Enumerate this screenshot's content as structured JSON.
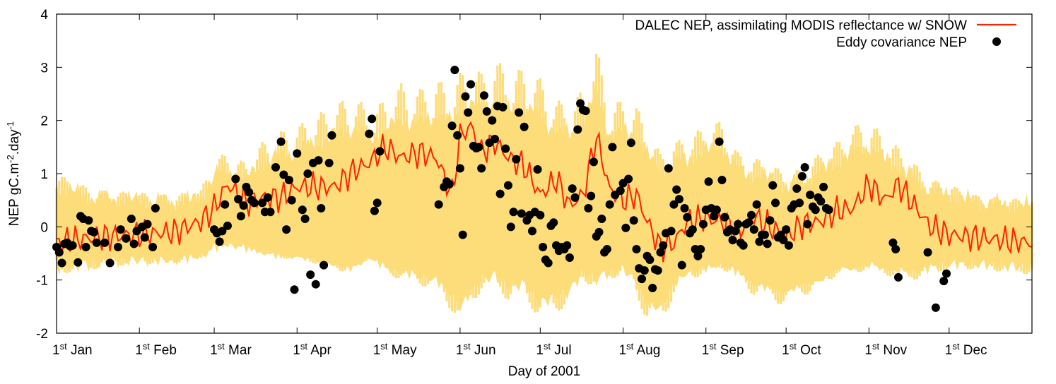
{
  "chart_data": {
    "type": "line",
    "title": "",
    "xlabel": "Day of 2001",
    "ylabel": "NEP gC.m",
    "ylabel_sup1": "-2",
    "ylabel_mid": ".day",
    "ylabel_sup2": "-1",
    "xlim": [
      1,
      366
    ],
    "ylim": [
      -2,
      4
    ],
    "yticks": [
      -2,
      -1,
      0,
      1,
      2,
      3,
      4
    ],
    "xticks": [
      {
        "day": 1,
        "sup": "st",
        "label": "Jan"
      },
      {
        "day": 32,
        "sup": "st",
        "label": "Feb"
      },
      {
        "day": 60,
        "sup": "st",
        "label": "Mar"
      },
      {
        "day": 91,
        "sup": "st",
        "label": "Apr"
      },
      {
        "day": 121,
        "sup": "st",
        "label": "May"
      },
      {
        "day": 152,
        "sup": "st",
        "label": "Jun"
      },
      {
        "day": 182,
        "sup": "st",
        "label": "Jul"
      },
      {
        "day": 213,
        "sup": "st",
        "label": "Aug"
      },
      {
        "day": 244,
        "sup": "st",
        "label": "Sep"
      },
      {
        "day": 274,
        "sup": "st",
        "label": "Oct"
      },
      {
        "day": 305,
        "sup": "st",
        "label": "Nov"
      },
      {
        "day": 335,
        "sup": "st",
        "label": "Dec"
      }
    ],
    "grid": false,
    "legend_position": "top-right",
    "colors": {
      "band": "#fddc7a",
      "line": "#ff2200",
      "points": "#000000"
    },
    "series": [
      {
        "name": "DALEC NEP, assimilating MODIS reflectance w/ SNOW",
        "kind": "line",
        "x": [
          1,
          15,
          30,
          45,
          55,
          60,
          65,
          72,
          78,
          85,
          91,
          98,
          105,
          112,
          118,
          124,
          130,
          137,
          143,
          149,
          152,
          156,
          160,
          165,
          170,
          176,
          182,
          188,
          193,
          198,
          203,
          208,
          213,
          218,
          222,
          227,
          232,
          237,
          244,
          250,
          256,
          262,
          268,
          274,
          280,
          287,
          293,
          299,
          305,
          311,
          316,
          322,
          328,
          335,
          345,
          355,
          366
        ],
        "y": [
          -0.3,
          -0.2,
          -0.15,
          -0.1,
          0.1,
          0.35,
          0.8,
          0.45,
          0.55,
          0.55,
          0.75,
          0.75,
          0.75,
          1.05,
          1.2,
          1.5,
          1.3,
          1.4,
          1.3,
          0.6,
          1.7,
          1.9,
          1.4,
          1.6,
          1.3,
          1.15,
          0.6,
          0.9,
          0.4,
          0.6,
          1.7,
          0.7,
          0.5,
          0.6,
          0.1,
          -0.4,
          -0.3,
          0.1,
          0.15,
          0.1,
          -0.1,
          0.2,
          0.0,
          -0.2,
          0.05,
          0.1,
          0.3,
          0.35,
          0.8,
          0.5,
          0.8,
          0.4,
          0.0,
          -0.15,
          -0.2,
          -0.25,
          -0.3
        ]
      },
      {
        "name": "Eddy covariance NEP",
        "kind": "scatter",
        "points": [
          [
            1,
            -0.38
          ],
          [
            2,
            -0.48
          ],
          [
            3,
            -0.68
          ],
          [
            4,
            -0.32
          ],
          [
            5,
            -0.3
          ],
          [
            6,
            -0.36
          ],
          [
            7,
            -0.35
          ],
          [
            9,
            -0.67
          ],
          [
            10,
            0.2
          ],
          [
            11,
            0.15
          ],
          [
            12,
            -0.38
          ],
          [
            13,
            0.12
          ],
          [
            14,
            -0.08
          ],
          [
            15,
            -0.1
          ],
          [
            16,
            -0.3
          ],
          [
            19,
            -0.3
          ],
          [
            21,
            -0.68
          ],
          [
            24,
            -0.38
          ],
          [
            25,
            -0.05
          ],
          [
            27,
            -0.22
          ],
          [
            29,
            0.15
          ],
          [
            30,
            -0.32
          ],
          [
            31,
            -0.08
          ],
          [
            33,
            0.0
          ],
          [
            34,
            -0.2
          ],
          [
            35,
            0.05
          ],
          [
            37,
            -0.38
          ],
          [
            38,
            0.35
          ],
          [
            60,
            -0.05
          ],
          [
            61,
            -0.12
          ],
          [
            62,
            -0.28
          ],
          [
            63,
            -0.08
          ],
          [
            64,
            0.42
          ],
          [
            65,
            0.02
          ],
          [
            68,
            0.9
          ],
          [
            69,
            0.52
          ],
          [
            70,
            0.2
          ],
          [
            71,
            0.4
          ],
          [
            72,
            0.75
          ],
          [
            73,
            0.65
          ],
          [
            74,
            0.5
          ],
          [
            75,
            0.45
          ],
          [
            78,
            0.45
          ],
          [
            79,
            0.28
          ],
          [
            80,
            0.55
          ],
          [
            81,
            0.28
          ],
          [
            83,
            1.12
          ],
          [
            85,
            1.6
          ],
          [
            86,
            0.98
          ],
          [
            87,
            -0.05
          ],
          [
            88,
            0.88
          ],
          [
            89,
            0.5
          ],
          [
            90,
            -1.18
          ],
          [
            91,
            1.38
          ],
          [
            93,
            0.32
          ],
          [
            94,
            0.15
          ],
          [
            95,
            1.0
          ],
          [
            96,
            -0.9
          ],
          [
            97,
            1.2
          ],
          [
            98,
            -1.08
          ],
          [
            99,
            1.25
          ],
          [
            100,
            0.35
          ],
          [
            101,
            -0.72
          ],
          [
            103,
            1.2
          ],
          [
            104,
            1.72
          ],
          [
            118,
            1.75
          ],
          [
            119,
            2.03
          ],
          [
            120,
            0.3
          ],
          [
            121,
            0.45
          ],
          [
            122,
            1.42
          ],
          [
            144,
            0.42
          ],
          [
            146,
            0.75
          ],
          [
            147,
            0.85
          ],
          [
            148,
            0.8
          ],
          [
            149,
            1.9
          ],
          [
            150,
            2.95
          ],
          [
            151,
            1.72
          ],
          [
            152,
            1.1
          ],
          [
            153,
            -0.15
          ],
          [
            154,
            2.45
          ],
          [
            155,
            2.15
          ],
          [
            156,
            2.68
          ],
          [
            157,
            1.52
          ],
          [
            158,
            1.48
          ],
          [
            159,
            1.5
          ],
          [
            160,
            1.1
          ],
          [
            161,
            2.47
          ],
          [
            162,
            2.17
          ],
          [
            163,
            1.58
          ],
          [
            164,
            2.0
          ],
          [
            165,
            1.65
          ],
          [
            166,
            2.27
          ],
          [
            167,
            0.62
          ],
          [
            168,
            2.25
          ],
          [
            169,
            1.47
          ],
          [
            170,
            0.78
          ],
          [
            171,
            0.0
          ],
          [
            172,
            0.28
          ],
          [
            173,
            1.27
          ],
          [
            174,
            2.15
          ],
          [
            175,
            0.25
          ],
          [
            176,
            1.88
          ],
          [
            177,
            0.12
          ],
          [
            178,
            0.22
          ],
          [
            179,
            -0.08
          ],
          [
            180,
            0.28
          ],
          [
            181,
            1.08
          ],
          [
            182,
            0.22
          ],
          [
            183,
            -0.38
          ],
          [
            184,
            -0.62
          ],
          [
            185,
            -0.68
          ],
          [
            186,
            0.02
          ],
          [
            187,
            0.08
          ],
          [
            188,
            -0.35
          ],
          [
            189,
            -0.45
          ],
          [
            190,
            -0.38
          ],
          [
            191,
            -0.42
          ],
          [
            192,
            -0.35
          ],
          [
            193,
            -0.58
          ],
          [
            194,
            0.72
          ],
          [
            195,
            0.55
          ],
          [
            196,
            1.83
          ],
          [
            197,
            2.32
          ],
          [
            198,
            2.2
          ],
          [
            199,
            2.18
          ],
          [
            200,
            0.35
          ],
          [
            201,
            0.58
          ],
          [
            202,
            1.22
          ],
          [
            203,
            -0.18
          ],
          [
            204,
            -0.1
          ],
          [
            205,
            0.15
          ],
          [
            206,
            -0.48
          ],
          [
            207,
            -0.42
          ],
          [
            208,
            0.42
          ],
          [
            209,
            1.5
          ],
          [
            210,
            0.6
          ],
          [
            212,
            0.68
          ],
          [
            213,
            0.82
          ],
          [
            214,
            -0.02
          ],
          [
            215,
            0.9
          ],
          [
            216,
            1.58
          ],
          [
            217,
            0.12
          ],
          [
            218,
            -0.42
          ],
          [
            219,
            -0.78
          ],
          [
            220,
            -0.98
          ],
          [
            221,
            -0.82
          ],
          [
            222,
            -0.55
          ],
          [
            223,
            -0.62
          ],
          [
            224,
            -1.15
          ],
          [
            225,
            -0.8
          ],
          [
            226,
            -0.82
          ],
          [
            227,
            -0.48
          ],
          [
            228,
            -0.35
          ],
          [
            229,
            -0.12
          ],
          [
            230,
            1.1
          ],
          [
            231,
            -0.08
          ],
          [
            232,
            0.42
          ],
          [
            233,
            0.7
          ],
          [
            234,
            0.52
          ],
          [
            235,
            -0.72
          ],
          [
            236,
            0.35
          ],
          [
            237,
            0.18
          ],
          [
            238,
            -0.12
          ],
          [
            239,
            -0.05
          ],
          [
            240,
            -0.42
          ],
          [
            241,
            -0.55
          ],
          [
            242,
            -0.42
          ],
          [
            243,
            0.05
          ],
          [
            244,
            0.32
          ],
          [
            245,
            0.85
          ],
          [
            246,
            0.35
          ],
          [
            247,
            0.2
          ],
          [
            248,
            0.32
          ],
          [
            249,
            1.6
          ],
          [
            250,
            0.88
          ],
          [
            251,
            0.18
          ],
          [
            252,
            -0.1
          ],
          [
            253,
            -0.05
          ],
          [
            254,
            -0.25
          ],
          [
            255,
            -0.08
          ],
          [
            256,
            0.05
          ],
          [
            257,
            -0.3
          ],
          [
            258,
            -0.35
          ],
          [
            259,
            0.05
          ],
          [
            260,
            0.08
          ],
          [
            261,
            0.22
          ],
          [
            262,
            -0.05
          ],
          [
            263,
            0.42
          ],
          [
            264,
            -0.28
          ],
          [
            265,
            -0.15
          ],
          [
            266,
            -0.15
          ],
          [
            267,
            -0.32
          ],
          [
            268,
            0.12
          ],
          [
            269,
            0.78
          ],
          [
            270,
            0.45
          ],
          [
            271,
            -0.2
          ],
          [
            272,
            -0.15
          ],
          [
            273,
            -0.25
          ],
          [
            274,
            -0.05
          ],
          [
            275,
            -0.35
          ],
          [
            276,
            0.35
          ],
          [
            277,
            0.42
          ],
          [
            278,
            0.72
          ],
          [
            279,
            0.45
          ],
          [
            280,
            0.95
          ],
          [
            281,
            1.12
          ],
          [
            282,
            0.05
          ],
          [
            283,
            0.6
          ],
          [
            284,
            0.38
          ],
          [
            285,
            0.32
          ],
          [
            286,
            0.55
          ],
          [
            287,
            0.48
          ],
          [
            288,
            0.75
          ],
          [
            289,
            0.35
          ],
          [
            290,
            0.32
          ],
          [
            314,
            -0.3
          ],
          [
            315,
            -0.42
          ],
          [
            316,
            -0.95
          ],
          [
            327,
            -0.48
          ],
          [
            330,
            -1.52
          ],
          [
            333,
            -1.02
          ],
          [
            334,
            -0.88
          ]
        ]
      }
    ],
    "uncertainty_band": {
      "name": "",
      "x": [
        1,
        15,
        30,
        45,
        55,
        60,
        65,
        72,
        78,
        85,
        91,
        98,
        105,
        112,
        118,
        124,
        130,
        137,
        143,
        149,
        152,
        156,
        160,
        165,
        170,
        176,
        182,
        188,
        193,
        198,
        203,
        208,
        213,
        218,
        222,
        227,
        232,
        237,
        244,
        250,
        256,
        262,
        268,
        274,
        280,
        287,
        293,
        299,
        305,
        311,
        316,
        322,
        328,
        335,
        345,
        355,
        366
      ],
      "upper": [
        1.0,
        0.7,
        0.65,
        0.6,
        0.7,
        1.3,
        1.4,
        1.2,
        1.6,
        1.8,
        1.9,
        2.1,
        2.3,
        2.5,
        2.2,
        2.4,
        2.7,
        2.6,
        2.8,
        2.6,
        2.9,
        3.1,
        2.9,
        3.2,
        2.9,
        3.0,
        2.8,
        2.4,
        2.3,
        2.6,
        3.4,
        2.3,
        2.4,
        2.3,
        1.8,
        1.4,
        1.6,
        1.7,
        1.9,
        2.0,
        1.4,
        1.3,
        1.2,
        1.0,
        1.1,
        1.4,
        1.6,
        1.9,
        2.0,
        1.7,
        1.5,
        1.2,
        0.9,
        0.8,
        0.6,
        0.55,
        0.5
      ],
      "lower": [
        -0.9,
        -0.8,
        -0.7,
        -0.7,
        -0.6,
        -0.4,
        -0.3,
        -0.4,
        -0.5,
        -0.6,
        -0.6,
        -0.7,
        -0.8,
        -0.9,
        -0.6,
        -0.9,
        -1.0,
        -1.1,
        -1.2,
        -1.6,
        -1.9,
        -1.5,
        -1.2,
        -1.1,
        -1.4,
        -1.3,
        -1.8,
        -1.6,
        -1.5,
        -1.0,
        -1.2,
        -1.0,
        -0.9,
        -1.3,
        -1.8,
        -1.9,
        -1.3,
        -1.0,
        -0.9,
        -0.8,
        -1.0,
        -1.3,
        -1.4,
        -1.5,
        -1.3,
        -1.2,
        -0.9,
        -0.9,
        -0.8,
        -0.9,
        -1.0,
        -1.0,
        -0.9,
        -0.8,
        -0.8,
        -0.85,
        -0.9
      ]
    }
  },
  "legend": {
    "line_label": "DALEC NEP, assimilating MODIS reflectance w/ SNOW",
    "points_label": "Eddy covariance NEP"
  }
}
